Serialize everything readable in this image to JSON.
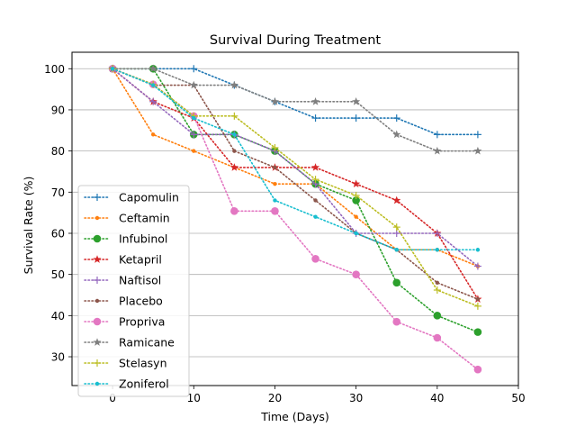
{
  "chart_data": {
    "type": "line",
    "title": "Survival During Treatment",
    "xlabel": "Time (Days)",
    "ylabel": "Survival Rate (%)",
    "xlim": [
      -5,
      50
    ],
    "ylim": [
      23,
      104
    ],
    "xticks": [
      0,
      10,
      20,
      30,
      40,
      50
    ],
    "yticks": [
      30,
      40,
      50,
      60,
      70,
      80,
      90,
      100
    ],
    "grid": "horizontal",
    "legend_position": "lower-left",
    "x": [
      0,
      5,
      10,
      15,
      20,
      25,
      30,
      35,
      40,
      45
    ],
    "series": [
      {
        "name": "Capomulin",
        "color": "#1f77b4",
        "marker": "plus",
        "values": [
          100,
          100,
          100,
          96,
          92,
          88,
          88,
          88,
          84,
          84
        ]
      },
      {
        "name": "Ceftamin",
        "color": "#ff7f0e",
        "marker": "point",
        "values": [
          100,
          84,
          80,
          76,
          72,
          72,
          64,
          56,
          56,
          52
        ]
      },
      {
        "name": "Infubinol",
        "color": "#2ca02c",
        "marker": "circle",
        "values": [
          100,
          100,
          84,
          84,
          80,
          72,
          68,
          48,
          40,
          36
        ]
      },
      {
        "name": "Ketapril",
        "color": "#d62728",
        "marker": "star",
        "values": [
          100,
          92,
          88,
          76,
          76,
          76,
          72,
          68,
          60,
          44
        ]
      },
      {
        "name": "Naftisol",
        "color": "#9467bd",
        "marker": "plus",
        "values": [
          100,
          92,
          84,
          84,
          80,
          72,
          60,
          60,
          60,
          52
        ]
      },
      {
        "name": "Placebo",
        "color": "#8c564b",
        "marker": "point",
        "values": [
          100,
          96,
          96,
          80,
          76,
          68,
          60,
          56,
          48,
          44
        ]
      },
      {
        "name": "Propriva",
        "color": "#e377c2",
        "marker": "circle",
        "values": [
          100,
          96.2,
          88.5,
          65.4,
          65.4,
          53.8,
          50,
          38.5,
          34.6,
          26.9
        ]
      },
      {
        "name": "Ramicane",
        "color": "#7f7f7f",
        "marker": "star",
        "values": [
          100,
          100,
          96,
          96,
          92,
          92,
          92,
          84,
          80,
          80
        ]
      },
      {
        "name": "Stelasyn",
        "color": "#bcbd22",
        "marker": "plus",
        "values": [
          100,
          96.2,
          88.5,
          88.5,
          80.8,
          73.1,
          69.2,
          61.5,
          46.2,
          42.3
        ]
      },
      {
        "name": "Zoniferol",
        "color": "#17becf",
        "marker": "point",
        "values": [
          100,
          96,
          88,
          84,
          68,
          64,
          60,
          56,
          56,
          56
        ]
      }
    ]
  }
}
